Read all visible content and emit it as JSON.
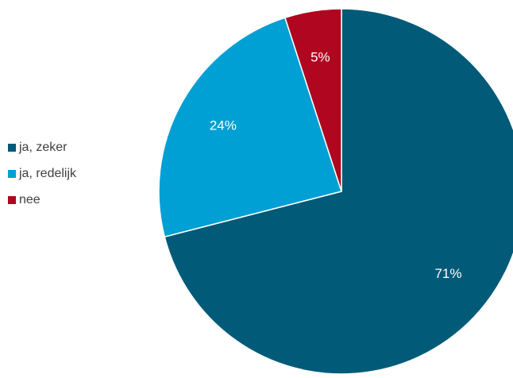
{
  "chart_data": {
    "type": "pie",
    "categories": [
      "ja, zeker",
      "ja, redelijk",
      "nee"
    ],
    "values": [
      71,
      24,
      5
    ],
    "labels": [
      "71%",
      "24%",
      "5%"
    ],
    "colors": [
      "#005A78",
      "#009FD4",
      "#B0061F"
    ],
    "legend_position": "left"
  }
}
